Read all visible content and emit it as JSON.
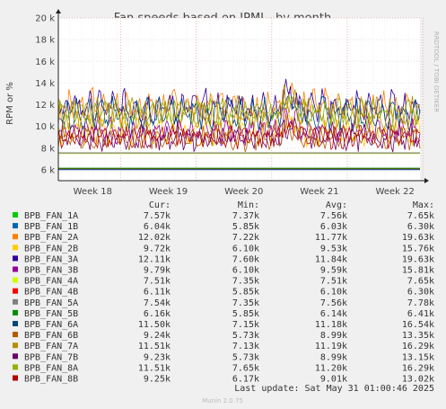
{
  "chart_data": {
    "type": "line",
    "title": "Fan speeds based on IPMI - by month",
    "ylabel": "RPM or %",
    "side_label": "RRDTOOL / TOBI OETIKER",
    "footer": "Munin 2.0.75",
    "last_update": "Last update: Sat May 31 01:00:46 2025",
    "ylim": [
      5000,
      20000
    ],
    "y_ticks": [
      {
        "value": 6000,
        "label": "6 k"
      },
      {
        "value": 8000,
        "label": "8 k"
      },
      {
        "value": 10000,
        "label": "10 k"
      },
      {
        "value": 12000,
        "label": "12 k"
      },
      {
        "value": 14000,
        "label": "14 k"
      },
      {
        "value": 16000,
        "label": "16 k"
      },
      {
        "value": 18000,
        "label": "18 k"
      },
      {
        "value": 20000,
        "label": "20 k"
      }
    ],
    "x_ticks": [
      "Week 18",
      "Week 19",
      "Week 20",
      "Week 21",
      "Week 22"
    ],
    "legend_headers": [
      "Cur:",
      "Min:",
      "Avg:",
      "Max:"
    ],
    "series": [
      {
        "name": "BPB_FAN_1A",
        "color": "#00cc00",
        "cur": "7.57k",
        "min": "7.37k",
        "avg": "7.56k",
        "max": "7.65k"
      },
      {
        "name": "BPB_FAN_1B",
        "color": "#0066b3",
        "cur": "6.04k",
        "min": "5.85k",
        "avg": "6.03k",
        "max": "6.30k"
      },
      {
        "name": "BPB_FAN_2A",
        "color": "#ff8000",
        "cur": "12.02k",
        "min": "7.22k",
        "avg": "11.77k",
        "max": "19.63k"
      },
      {
        "name": "BPB_FAN_2B",
        "color": "#ffcc00",
        "cur": "9.72k",
        "min": "6.10k",
        "avg": "9.53k",
        "max": "15.76k"
      },
      {
        "name": "BPB_FAN_3A",
        "color": "#330099",
        "cur": "12.11k",
        "min": "7.60k",
        "avg": "11.84k",
        "max": "19.63k"
      },
      {
        "name": "BPB_FAN_3B",
        "color": "#990099",
        "cur": "9.79k",
        "min": "6.10k",
        "avg": "9.59k",
        "max": "15.81k"
      },
      {
        "name": "BPB_FAN_4A",
        "color": "#ccff00",
        "cur": "7.51k",
        "min": "7.35k",
        "avg": "7.51k",
        "max": "7.65k"
      },
      {
        "name": "BPB_FAN_4B",
        "color": "#ff0000",
        "cur": "6.11k",
        "min": "5.85k",
        "avg": "6.10k",
        "max": "6.30k"
      },
      {
        "name": "BPB_FAN_5A",
        "color": "#808080",
        "cur": "7.54k",
        "min": "7.35k",
        "avg": "7.56k",
        "max": "7.78k"
      },
      {
        "name": "BPB_FAN_5B",
        "color": "#008f00",
        "cur": "6.16k",
        "min": "5.85k",
        "avg": "6.14k",
        "max": "6.41k"
      },
      {
        "name": "BPB_FAN_6A",
        "color": "#00487d",
        "cur": "11.50k",
        "min": "7.15k",
        "avg": "11.18k",
        "max": "16.54k"
      },
      {
        "name": "BPB_FAN_6B",
        "color": "#b35a00",
        "cur": "9.24k",
        "min": "5.73k",
        "avg": "8.99k",
        "max": "13.35k"
      },
      {
        "name": "BPB_FAN_7A",
        "color": "#b38f00",
        "cur": "11.51k",
        "min": "7.13k",
        "avg": "11.19k",
        "max": "16.29k"
      },
      {
        "name": "BPB_FAN_7B",
        "color": "#6b006b",
        "cur": "9.23k",
        "min": "5.73k",
        "avg": "8.99k",
        "max": "13.15k"
      },
      {
        "name": "BPB_FAN_8A",
        "color": "#8fb300",
        "cur": "11.51k",
        "min": "7.65k",
        "avg": "11.20k",
        "max": "16.29k"
      },
      {
        "name": "BPB_FAN_8B",
        "color": "#b30000",
        "cur": "9.25k",
        "min": "6.17k",
        "avg": "9.01k",
        "max": "13.02k"
      }
    ]
  }
}
